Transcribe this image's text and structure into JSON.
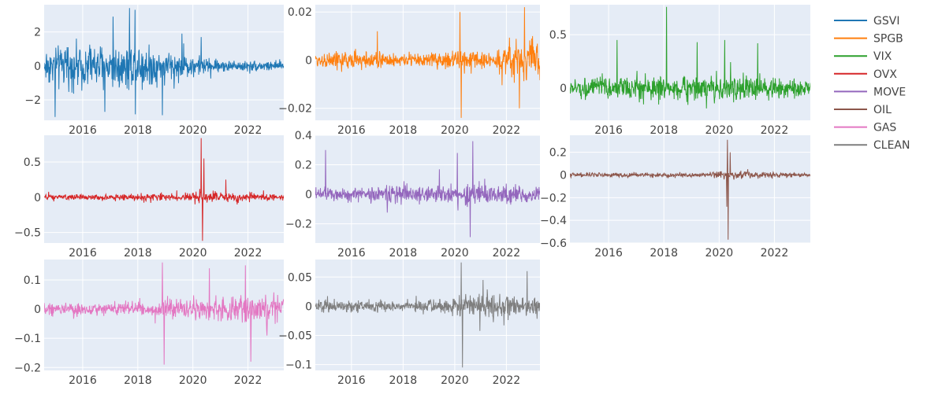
{
  "chart_data": {
    "type": "line",
    "layout": "grid-3x3",
    "background": "#e5ecf6",
    "grid": true,
    "legend_position": "right",
    "x_ticks": [
      "2016",
      "2018",
      "2020",
      "2022"
    ],
    "xlim": [
      2014.6,
      2023.3
    ],
    "panels": [
      {
        "name": "GSVI",
        "color": "#1f77b4",
        "ylim": [
          -3.2,
          3.6
        ],
        "y_ticks": [
          -2,
          0,
          2
        ],
        "y_tick_labels": [
          "−2",
          "0",
          "2"
        ],
        "noise_profile": [
          [
            2014.6,
            1.6
          ],
          [
            2016.0,
            1.8
          ],
          [
            2017.0,
            1.9
          ],
          [
            2018.0,
            2.0
          ],
          [
            2019.0,
            1.3
          ],
          [
            2020.0,
            0.9
          ],
          [
            2021.0,
            0.5
          ],
          [
            2022.0,
            0.45
          ],
          [
            2023.3,
            0.45
          ]
        ],
        "spikes": [
          [
            2017.7,
            3.4
          ],
          [
            2017.9,
            3.3
          ],
          [
            2017.1,
            2.9
          ],
          [
            2015.0,
            -3.0
          ],
          [
            2018.9,
            -2.9
          ],
          [
            2016.8,
            -2.7
          ],
          [
            2019.6,
            1.9
          ],
          [
            2020.3,
            1.7
          ]
        ]
      },
      {
        "name": "SPGB",
        "color": "#ff7f0e",
        "ylim": [
          -0.025,
          0.023
        ],
        "y_ticks": [
          -0.02,
          0,
          0.02
        ],
        "y_tick_labels": [
          "−0.02",
          "0",
          "0.02"
        ],
        "noise_profile": [
          [
            2014.6,
            0.004
          ],
          [
            2016.0,
            0.006
          ],
          [
            2018.0,
            0.004
          ],
          [
            2020.0,
            0.005
          ],
          [
            2021.5,
            0.005
          ],
          [
            2022.0,
            0.01
          ],
          [
            2023.3,
            0.013
          ]
        ],
        "spikes": [
          [
            2020.2,
            0.02
          ],
          [
            2020.25,
            -0.024
          ],
          [
            2022.7,
            0.022
          ],
          [
            2022.5,
            -0.02
          ],
          [
            2017.0,
            0.012
          ]
        ]
      },
      {
        "name": "VIX",
        "color": "#2ca02c",
        "ylim": [
          -0.3,
          0.78
        ],
        "y_ticks": [
          0,
          0.5
        ],
        "y_tick_labels": [
          "0",
          "0.5"
        ],
        "noise_profile": [
          [
            2014.6,
            0.12
          ],
          [
            2016.0,
            0.14
          ],
          [
            2018.0,
            0.15
          ],
          [
            2020.0,
            0.16
          ],
          [
            2022.0,
            0.14
          ],
          [
            2023.3,
            0.12
          ]
        ],
        "spikes": [
          [
            2018.1,
            0.76
          ],
          [
            2016.3,
            0.45
          ],
          [
            2019.2,
            0.43
          ],
          [
            2020.2,
            0.45
          ],
          [
            2021.4,
            0.42
          ]
        ]
      },
      {
        "name": "OVX",
        "color": "#d62728",
        "ylim": [
          -0.65,
          0.88
        ],
        "y_ticks": [
          -0.5,
          0,
          0.5
        ],
        "y_tick_labels": [
          "−0.5",
          "0",
          "0.5"
        ],
        "noise_profile": [
          [
            2014.6,
            0.05
          ],
          [
            2016.0,
            0.06
          ],
          [
            2019.5,
            0.07
          ],
          [
            2020.0,
            0.12
          ],
          [
            2021.0,
            0.1
          ],
          [
            2023.3,
            0.06
          ]
        ],
        "spikes": [
          [
            2020.3,
            0.84
          ],
          [
            2020.35,
            -0.62
          ],
          [
            2020.4,
            0.55
          ],
          [
            2021.2,
            0.25
          ]
        ]
      },
      {
        "name": "MOVE",
        "color": "#9467bd",
        "ylim": [
          -0.33,
          0.4
        ],
        "y_ticks": [
          -0.2,
          0,
          0.2,
          0.4
        ],
        "y_tick_labels": [
          "−0.2",
          "0",
          "0.2",
          "0.4"
        ],
        "noise_profile": [
          [
            2014.6,
            0.06
          ],
          [
            2016.0,
            0.07
          ],
          [
            2018.0,
            0.08
          ],
          [
            2020.0,
            0.1
          ],
          [
            2022.0,
            0.09
          ],
          [
            2023.3,
            0.07
          ]
        ],
        "spikes": [
          [
            2020.1,
            0.28
          ],
          [
            2020.7,
            0.36
          ],
          [
            2020.6,
            -0.29
          ],
          [
            2015.0,
            0.3
          ],
          [
            2019.4,
            0.17
          ]
        ]
      },
      {
        "name": "OIL",
        "color": "#8c564b",
        "ylim": [
          -0.6,
          0.35
        ],
        "y_ticks": [
          -0.6,
          -0.4,
          -0.2,
          0,
          0.2
        ],
        "y_tick_labels": [
          "−0.6",
          "−0.4",
          "−0.2",
          "0",
          "0.2"
        ],
        "noise_profile": [
          [
            2014.6,
            0.025
          ],
          [
            2016.0,
            0.03
          ],
          [
            2019.5,
            0.025
          ],
          [
            2020.0,
            0.05
          ],
          [
            2021.0,
            0.04
          ],
          [
            2023.3,
            0.025
          ]
        ],
        "spikes": [
          [
            2020.3,
            0.31
          ],
          [
            2020.32,
            -0.57
          ],
          [
            2020.28,
            -0.28
          ],
          [
            2020.4,
            0.2
          ]
        ]
      },
      {
        "name": "GAS",
        "color": "#e377c2",
        "ylim": [
          -0.21,
          0.17
        ],
        "y_ticks": [
          -0.2,
          -0.1,
          0,
          0.1
        ],
        "y_tick_labels": [
          "−0.2",
          "−0.1",
          "0",
          "0.1"
        ],
        "noise_profile": [
          [
            2014.6,
            0.035
          ],
          [
            2016.0,
            0.035
          ],
          [
            2018.0,
            0.03
          ],
          [
            2019.5,
            0.045
          ],
          [
            2021.0,
            0.05
          ],
          [
            2022.0,
            0.07
          ],
          [
            2023.3,
            0.07
          ]
        ],
        "spikes": [
          [
            2018.9,
            0.16
          ],
          [
            2018.95,
            -0.19
          ],
          [
            2021.9,
            0.15
          ],
          [
            2022.1,
            -0.18
          ],
          [
            2020.6,
            0.14
          ]
        ]
      },
      {
        "name": "CLEAN",
        "color": "#7f7f7f",
        "ylim": [
          -0.11,
          0.08
        ],
        "y_ticks": [
          -0.1,
          -0.05,
          0,
          0.05
        ],
        "y_tick_labels": [
          "−0.1",
          "−0.05",
          "0",
          "0.05"
        ],
        "noise_profile": [
          [
            2014.6,
            0.015
          ],
          [
            2016.0,
            0.015
          ],
          [
            2018.0,
            0.012
          ],
          [
            2020.0,
            0.02
          ],
          [
            2020.5,
            0.03
          ],
          [
            2021.5,
            0.025
          ],
          [
            2023.3,
            0.025
          ]
        ],
        "spikes": [
          [
            2020.25,
            0.075
          ],
          [
            2020.3,
            -0.105
          ],
          [
            2022.8,
            0.06
          ],
          [
            2021.1,
            0.045
          ]
        ]
      }
    ]
  }
}
